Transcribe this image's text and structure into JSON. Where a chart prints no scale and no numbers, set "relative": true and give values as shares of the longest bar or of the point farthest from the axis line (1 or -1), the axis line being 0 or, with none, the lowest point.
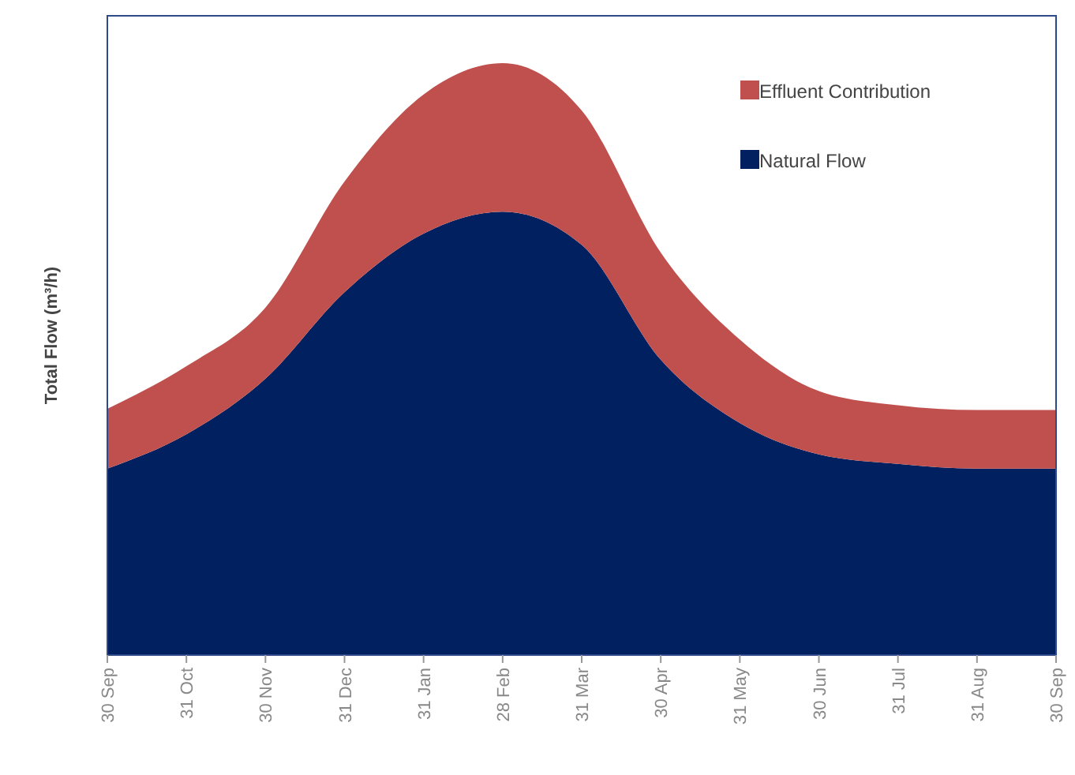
{
  "chart_data": {
    "type": "area",
    "stacked": true,
    "relative": true,
    "ylabel": "Total Flow (m³/h)",
    "legend": "top right",
    "categories": [
      "30 Sep",
      "31 Oct",
      "30 Nov",
      "31 Dec",
      "31 Jan",
      "28 Feb",
      "31 Mar",
      "30 Apr",
      "31 May",
      "30 Jun",
      "31 Jul",
      "31 Aug",
      "30 Sep"
    ],
    "series": [
      {
        "name": "Natural Flow",
        "color": "#002060",
        "values": [
          0.315,
          0.373,
          0.467,
          0.613,
          0.712,
          0.749,
          0.693,
          0.499,
          0.392,
          0.339,
          0.323,
          0.315,
          0.315
        ]
      },
      {
        "name": "Effluent Contribution",
        "color": "#c0504d",
        "values": [
          0.101,
          0.115,
          0.12,
          0.187,
          0.235,
          0.251,
          0.227,
          0.181,
          0.141,
          0.107,
          0.099,
          0.099,
          0.099
        ]
      }
    ]
  }
}
